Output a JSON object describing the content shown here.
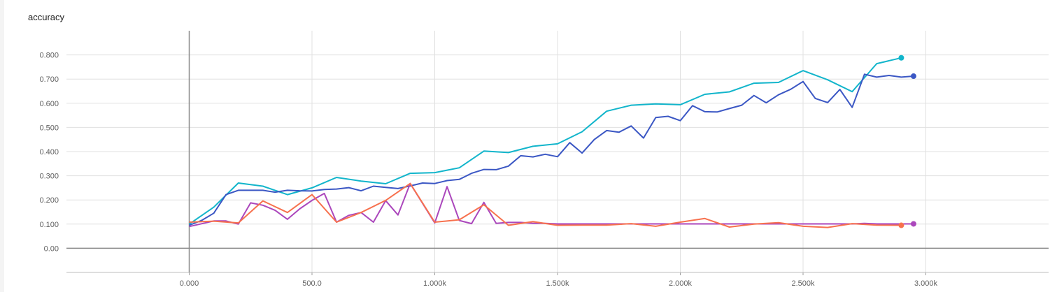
{
  "panel": {
    "title": "accuracy"
  },
  "chart_data": {
    "type": "line",
    "title": "accuracy",
    "xlabel": "",
    "ylabel": "",
    "xlim": [
      -500,
      3500
    ],
    "ylim": [
      -0.1,
      0.9
    ],
    "grid": true,
    "x_ticks": [
      {
        "value": 0,
        "label": "0.000"
      },
      {
        "value": 500,
        "label": "500.0"
      },
      {
        "value": 1000,
        "label": "1.000k"
      },
      {
        "value": 1500,
        "label": "1.500k"
      },
      {
        "value": 2000,
        "label": "2.000k"
      },
      {
        "value": 2500,
        "label": "2.500k"
      },
      {
        "value": 3000,
        "label": "3.000k"
      }
    ],
    "y_ticks": [
      {
        "value": 0,
        "label": "0.00"
      },
      {
        "value": 0.1,
        "label": "0.100"
      },
      {
        "value": 0.2,
        "label": "0.200"
      },
      {
        "value": 0.3,
        "label": "0.300"
      },
      {
        "value": 0.4,
        "label": "0.400"
      },
      {
        "value": 0.5,
        "label": "0.500"
      },
      {
        "value": 0.6,
        "label": "0.600"
      },
      {
        "value": 0.7,
        "label": "0.700"
      },
      {
        "value": 0.8,
        "label": "0.800"
      }
    ],
    "series": [
      {
        "color": "#12b5cb",
        "x": [
          0,
          100,
          200,
          300,
          400,
          500,
          600,
          700,
          800,
          900,
          1000,
          1100,
          1200,
          1300,
          1400,
          1500,
          1600,
          1700,
          1800,
          1900,
          2000,
          2100,
          2200,
          2300,
          2400,
          2500,
          2600,
          2700,
          2800,
          2900
        ],
        "values": [
          0.1,
          0.17,
          0.27,
          0.257,
          0.222,
          0.25,
          0.293,
          0.278,
          0.267,
          0.31,
          0.313,
          0.333,
          0.402,
          0.396,
          0.422,
          0.432,
          0.482,
          0.567,
          0.592,
          0.597,
          0.594,
          0.637,
          0.647,
          0.683,
          0.686,
          0.735,
          0.697,
          0.648,
          0.764,
          0.788
        ]
      },
      {
        "color": "#3b57c4",
        "x": [
          0,
          50,
          100,
          150,
          200,
          250,
          300,
          350,
          400,
          450,
          500,
          550,
          600,
          650,
          700,
          750,
          800,
          850,
          900,
          950,
          1000,
          1050,
          1100,
          1150,
          1200,
          1250,
          1300,
          1350,
          1400,
          1450,
          1500,
          1550,
          1600,
          1650,
          1700,
          1750,
          1800,
          1850,
          1900,
          1950,
          2000,
          2050,
          2100,
          2150,
          2200,
          2250,
          2300,
          2350,
          2400,
          2450,
          2500,
          2550,
          2600,
          2650,
          2700,
          2750,
          2800,
          2850,
          2900,
          2950
        ],
        "values": [
          0.095,
          0.115,
          0.145,
          0.222,
          0.24,
          0.24,
          0.24,
          0.232,
          0.24,
          0.238,
          0.237,
          0.243,
          0.245,
          0.251,
          0.238,
          0.257,
          0.252,
          0.247,
          0.258,
          0.27,
          0.268,
          0.28,
          0.285,
          0.31,
          0.326,
          0.325,
          0.34,
          0.383,
          0.378,
          0.389,
          0.379,
          0.437,
          0.394,
          0.45,
          0.487,
          0.48,
          0.506,
          0.456,
          0.541,
          0.546,
          0.528,
          0.59,
          0.565,
          0.564,
          0.578,
          0.592,
          0.632,
          0.602,
          0.635,
          0.658,
          0.69,
          0.62,
          0.603,
          0.657,
          0.583,
          0.72,
          0.708,
          0.715,
          0.708,
          0.712
        ]
      },
      {
        "color": "#ab47bc",
        "x": [
          0,
          100,
          150,
          200,
          250,
          300,
          350,
          400,
          450,
          500,
          550,
          600,
          650,
          700,
          750,
          800,
          850,
          900,
          1000,
          1050,
          1100,
          1150,
          1200,
          1250,
          1300,
          1350,
          1400,
          1450,
          1500,
          1600,
          1700,
          1800,
          1900,
          2000,
          2100,
          2200,
          2300,
          2400,
          2500,
          2600,
          2700,
          2750,
          2800,
          2950
        ],
        "values": [
          0.09,
          0.113,
          0.113,
          0.1,
          0.188,
          0.178,
          0.157,
          0.12,
          0.163,
          0.198,
          0.227,
          0.108,
          0.136,
          0.148,
          0.108,
          0.197,
          0.138,
          0.268,
          0.105,
          0.255,
          0.115,
          0.102,
          0.19,
          0.103,
          0.107,
          0.107,
          0.103,
          0.103,
          0.101,
          0.101,
          0.101,
          0.101,
          0.101,
          0.101,
          0.101,
          0.101,
          0.101,
          0.101,
          0.101,
          0.101,
          0.101,
          0.103,
          0.101,
          0.101
        ]
      },
      {
        "color": "#f7714e",
        "x": [
          0,
          100,
          200,
          300,
          400,
          500,
          600,
          700,
          800,
          900,
          1000,
          1100,
          1200,
          1300,
          1400,
          1500,
          1600,
          1700,
          1800,
          1900,
          2000,
          2100,
          2200,
          2300,
          2400,
          2500,
          2600,
          2700,
          2800,
          2900
        ],
        "values": [
          0.108,
          0.112,
          0.105,
          0.196,
          0.148,
          0.222,
          0.108,
          0.148,
          0.198,
          0.268,
          0.108,
          0.118,
          0.18,
          0.095,
          0.11,
          0.095,
          0.096,
          0.096,
          0.102,
          0.091,
          0.108,
          0.123,
          0.088,
          0.1,
          0.106,
          0.091,
          0.086,
          0.102,
          0.096,
          0.095
        ]
      }
    ]
  }
}
